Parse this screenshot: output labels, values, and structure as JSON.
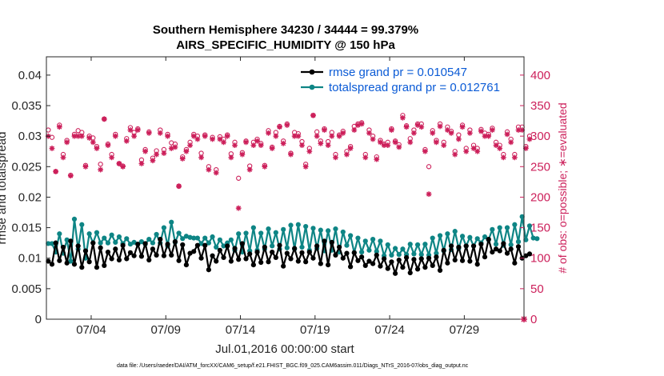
{
  "chart_data": {
    "type": "line",
    "title_line1": "Southern Hemisphere 34230 / 34444 = 99.379%",
    "title_line2": "AIRS_SPECIFIC_HUMIDITY @ 150 hPa",
    "xlabel": "Jul.01,2016 00:00:00 start",
    "ylabel_left": "rmse and totalspread",
    "ylabel_right": "# of obs: o=possible; ∗=evaluated",
    "footer": "data file: /Users/raeder/DAI/ATM_forcXX/CAM6_setup/f.e21.FHIST_BGC.f09_025.CAM6assim.011/Diags_NTrS_2016-07/obs_diag_output.nc",
    "x_ticks": [
      "07/04",
      "07/09",
      "07/14",
      "07/19",
      "07/24",
      "07/29"
    ],
    "x_tick_days": [
      3,
      8,
      13,
      18,
      23,
      28
    ],
    "xlim_days": [
      0,
      32
    ],
    "ylim_left": [
      0,
      0.043
    ],
    "yticks_left": [
      "0",
      "0.005",
      "0.01",
      "0.015",
      "0.02",
      "0.025",
      "0.03",
      "0.035",
      "0.04"
    ],
    "ylim_right": [
      0,
      430
    ],
    "yticks_right": [
      "0",
      "50",
      "100",
      "150",
      "200",
      "250",
      "300",
      "350",
      "400"
    ],
    "legend_position": "top-right",
    "colors": {
      "rmse": "#000000",
      "totalspread": "#0e8585",
      "obs": "#cc1f5a",
      "legend_text": "#0b5bd6"
    },
    "series": [
      {
        "name": "rmse grand pr = 0.010547",
        "color": "#000000",
        "values": [
          0.0095,
          0.009,
          0.0125,
          0.0096,
          0.0118,
          0.0092,
          0.0128,
          0.009,
          0.012,
          0.0085,
          0.0112,
          0.0094,
          0.0125,
          0.0085,
          0.0117,
          0.0088,
          0.011,
          0.0099,
          0.0115,
          0.0097,
          0.0121,
          0.0099,
          0.0109,
          0.0104,
          0.0123,
          0.0103,
          0.0124,
          0.0097,
          0.0115,
          0.0105,
          0.0131,
          0.0104,
          0.0123,
          0.0105,
          0.0127,
          0.0096,
          0.0122,
          0.0089,
          0.0108,
          0.0111,
          0.0121,
          0.01,
          0.0121,
          0.0081,
          0.0104,
          0.0095,
          0.0113,
          0.0101,
          0.012,
          0.0095,
          0.0116,
          0.0098,
          0.0124,
          0.0099,
          0.0107,
          0.0089,
          0.011,
          0.0093,
          0.0118,
          0.0094,
          0.011,
          0.0101,
          0.0121,
          0.0087,
          0.0108,
          0.0099,
          0.0116,
          0.0095,
          0.0109,
          0.0094,
          0.011,
          0.01,
          0.012,
          0.0091,
          0.0128,
          0.0089,
          0.0126,
          0.0105,
          0.0118,
          0.01,
          0.0108,
          0.0086,
          0.0109,
          0.0096,
          0.0102,
          0.0088,
          0.0095,
          0.0091,
          0.0105,
          0.0087,
          0.0099,
          0.0083,
          0.0094,
          0.0075,
          0.0097,
          0.0085,
          0.0101,
          0.0076,
          0.0098,
          0.0082,
          0.0099,
          0.0085,
          0.01,
          0.0088,
          0.0102,
          0.008,
          0.0113,
          0.0092,
          0.012,
          0.0097,
          0.0118,
          0.0096,
          0.012,
          0.0095,
          0.012,
          0.009,
          0.0123,
          0.0102,
          0.0131,
          0.011,
          0.0115,
          0.0112,
          0.0124,
          0.0108,
          0.0115,
          0.0092,
          0.0119,
          0.01,
          0.0104,
          0.0107
        ]
      },
      {
        "name": "totalspread grand pr = 0.012761",
        "color": "#0e8585",
        "values": [
          0.0124,
          0.0124,
          0.011,
          0.014,
          0.0108,
          0.013,
          0.0095,
          0.0164,
          0.0115,
          0.0155,
          0.01,
          0.014,
          0.0125,
          0.0142,
          0.0125,
          0.0133,
          0.0125,
          0.0138,
          0.0126,
          0.0135,
          0.0124,
          0.0132,
          0.0123,
          0.0126,
          0.0123,
          0.0127,
          0.0123,
          0.0131,
          0.0125,
          0.0139,
          0.0125,
          0.015,
          0.012,
          0.0159,
          0.0126,
          0.0141,
          0.0132,
          0.0136,
          0.0134,
          0.0133,
          0.0133,
          0.0124,
          0.0133,
          0.0125,
          0.0135,
          0.0118,
          0.013,
          0.012,
          0.0125,
          0.013,
          0.0113,
          0.014,
          0.011,
          0.0141,
          0.0112,
          0.015,
          0.0113,
          0.0141,
          0.0115,
          0.0148,
          0.012,
          0.0142,
          0.0115,
          0.0147,
          0.0117,
          0.0154,
          0.0115,
          0.0155,
          0.0118,
          0.0152,
          0.0113,
          0.0149,
          0.0116,
          0.0146,
          0.0112,
          0.0145,
          0.0113,
          0.0148,
          0.011,
          0.0143,
          0.0121,
          0.0137,
          0.0109,
          0.0133,
          0.011,
          0.0128,
          0.0113,
          0.0131,
          0.0111,
          0.0128,
          0.0104,
          0.0122,
          0.0105,
          0.0116,
          0.0106,
          0.0115,
          0.0106,
          0.0123,
          0.0107,
          0.0122,
          0.0106,
          0.0123,
          0.0105,
          0.0133,
          0.0108,
          0.0137,
          0.0112,
          0.014,
          0.0114,
          0.0144,
          0.0116,
          0.0136,
          0.012,
          0.0134,
          0.012,
          0.0132,
          0.0125,
          0.0135,
          0.013,
          0.0147,
          0.0123,
          0.015,
          0.0121,
          0.015,
          0.0122,
          0.0155,
          0.0127,
          0.0168,
          0.013,
          0.0153,
          0.0133,
          0.0132
        ]
      },
      {
        "name": "obs possible",
        "marker": "o",
        "color": "#cc1f5a",
        "values": [
          310,
          298,
          242,
          318,
          270,
          293,
          236,
          303,
          309,
          306,
          252,
          300,
          297,
          283,
          254,
          328,
          287,
          270,
          303,
          255,
          251,
          296,
          314,
          306,
          312,
          261,
          278,
          307,
          264,
          276,
          310,
          278,
          303,
          289,
          287,
          218,
          266,
          278,
          290,
          303,
          300,
          272,
          302,
          250,
          298,
          245,
          299,
          295,
          302,
          271,
          290,
          231,
          273,
          292,
          251,
          290,
          295,
          288,
          252,
          309,
          282,
          306,
          316,
          292,
          320,
          272,
          306,
          304,
          291,
          254,
          280,
          334,
          307,
          292,
          312,
          291,
          306,
          270,
          302,
          308,
          275,
          283,
          316,
          320,
          322,
          270,
          310,
          300,
          266,
          293,
          287,
          290,
          312,
          292,
          286,
          334,
          317,
          296,
          310,
          320,
          320,
          278,
          250,
          309,
          293,
          320,
          290,
          315,
          308,
          275,
          302,
          318,
          280,
          310,
          285,
          280,
          311,
          305,
          303,
          313,
          290,
          285,
          270,
          307,
          295,
          270,
          315,
          315,
          283,
          300
        ]
      },
      {
        "name": "obs evaluated",
        "marker": "*",
        "color": "#cc1f5a",
        "values": [
          300,
          280,
          242,
          315,
          265,
          290,
          235,
          300,
          300,
          300,
          250,
          297,
          290,
          280,
          245,
          328,
          285,
          265,
          300,
          255,
          250,
          292,
          310,
          300,
          310,
          255,
          275,
          305,
          260,
          270,
          305,
          272,
          300,
          280,
          282,
          218,
          263,
          275,
          285,
          300,
          295,
          265,
          300,
          245,
          295,
          240,
          295,
          290,
          300,
          265,
          285,
          182,
          270,
          290,
          245,
          285,
          292,
          285,
          250,
          305,
          280,
          300,
          315,
          288,
          318,
          270,
          300,
          300,
          285,
          250,
          275,
          334,
          300,
          288,
          310,
          285,
          300,
          265,
          300,
          305,
          270,
          280,
          310,
          318,
          320,
          265,
          305,
          295,
          262,
          290,
          285,
          285,
          310,
          290,
          282,
          330,
          315,
          290,
          305,
          318,
          315,
          275,
          205,
          305,
          290,
          316,
          285,
          310,
          305,
          270,
          295,
          315,
          275,
          305,
          280,
          275,
          308,
          300,
          300,
          310,
          285,
          280,
          265,
          303,
          290,
          265,
          310,
          310,
          280,
          295
        ]
      }
    ]
  }
}
